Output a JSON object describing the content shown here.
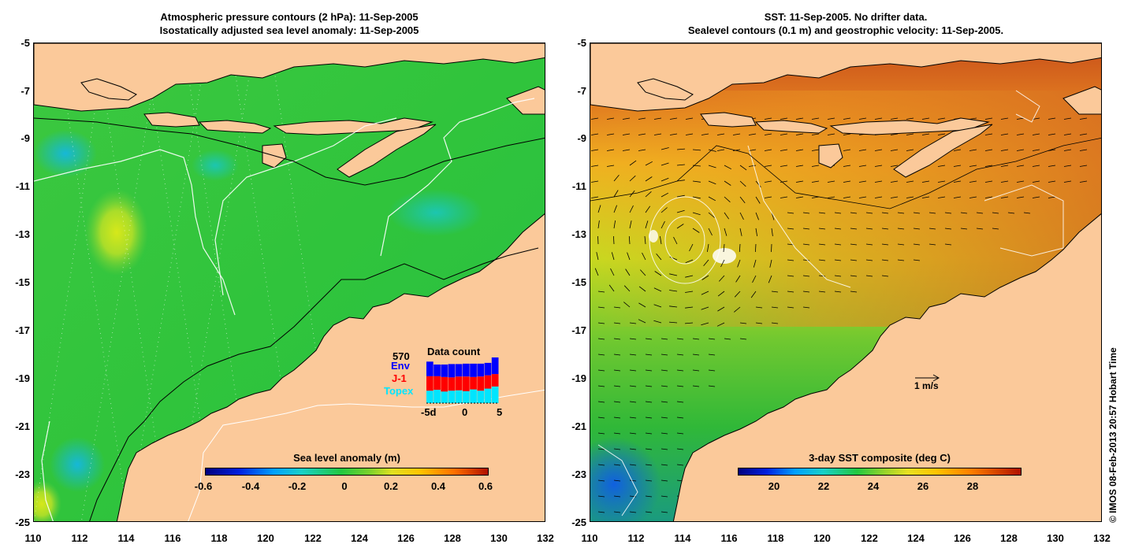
{
  "left_panel": {
    "title_line1": "Atmospheric pressure contours (2 hPa): 11-Sep-2005",
    "title_line2": "Isostatically adjusted sea level anomaly: 11-Sep-2005",
    "colorbar": {
      "label": "Sea level anomaly (m)",
      "ticks": [
        "-0.6",
        "-0.4",
        "-0.2",
        "0",
        "0.2",
        "0.4",
        "0.6"
      ]
    },
    "data_count": {
      "title": "Data count",
      "max_label": "570",
      "series": [
        {
          "name": "Env",
          "color": "#0000ff"
        },
        {
          "name": "J-1",
          "color": "#ff0000"
        },
        {
          "name": "Topex",
          "color": "#00e5ff"
        }
      ],
      "x_ticks": [
        "-5d",
        "0",
        "5"
      ],
      "bars": [
        {
          "topex": 0.3,
          "j1": 0.35,
          "env": 0.35
        },
        {
          "topex": 0.32,
          "j1": 0.33,
          "env": 0.28
        },
        {
          "topex": 0.28,
          "j1": 0.35,
          "env": 0.3
        },
        {
          "topex": 0.3,
          "j1": 0.32,
          "env": 0.32
        },
        {
          "topex": 0.31,
          "j1": 0.33,
          "env": 0.3
        },
        {
          "topex": 0.29,
          "j1": 0.35,
          "env": 0.31
        },
        {
          "topex": 0.33,
          "j1": 0.3,
          "env": 0.32
        },
        {
          "topex": 0.3,
          "j1": 0.34,
          "env": 0.31
        },
        {
          "topex": 0.35,
          "j1": 0.32,
          "env": 0.3
        },
        {
          "topex": 0.4,
          "j1": 0.3,
          "env": 0.4
        }
      ]
    }
  },
  "right_panel": {
    "title_line1": "SST: 11-Sep-2005. No drifter data.",
    "title_line2": "Sealevel contours (0.1 m) and geostrophic velocity: 11-Sep-2005.",
    "colorbar": {
      "label": "3-day SST composite (deg C)",
      "ticks": [
        "20",
        "22",
        "24",
        "26",
        "28"
      ]
    },
    "scale_arrow_label": "1 m/s"
  },
  "axes": {
    "y_ticks": [
      "-5",
      "-7",
      "-9",
      "-11",
      "-13",
      "-15",
      "-17",
      "-19",
      "-21",
      "-23",
      "-25"
    ],
    "x_ticks": [
      "110",
      "112",
      "114",
      "116",
      "118",
      "120",
      "122",
      "124",
      "126",
      "128",
      "130",
      "132"
    ]
  },
  "copyright": "© IMOS 08-Feb-2013 20:57 Hobart Time",
  "colors": {
    "land": "#fbc99a",
    "slam_base": "#22bf3a",
    "sst_base": "#e69a1c"
  }
}
